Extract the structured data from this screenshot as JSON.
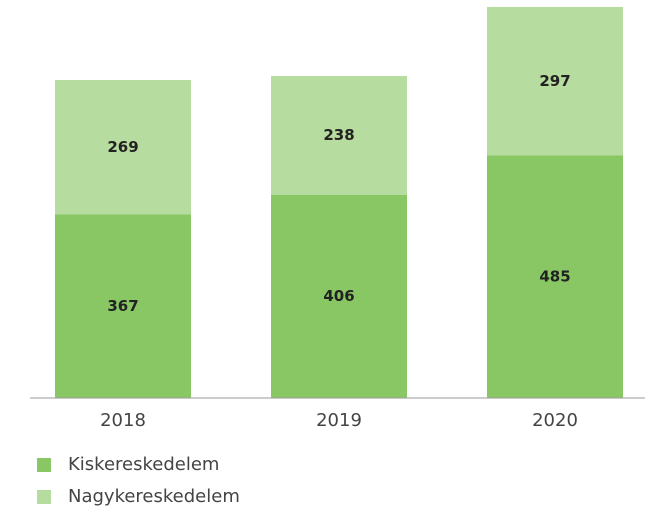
{
  "chart_data": {
    "type": "stacked_bar",
    "categories": [
      "2018",
      "2019",
      "2020"
    ],
    "series": [
      {
        "name": "Kiskereskedelem",
        "color": "#88c764",
        "values": [
          367,
          406,
          485
        ]
      },
      {
        "name": "Nagykereskedelem",
        "color": "#b7dc9f",
        "values": [
          269,
          238,
          297
        ]
      }
    ],
    "legend": "bottom-left"
  }
}
